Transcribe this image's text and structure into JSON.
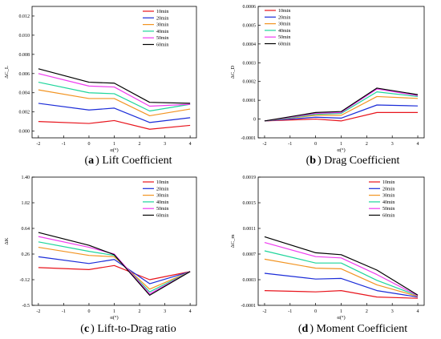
{
  "legend_labels": [
    "10min",
    "20min",
    "30min",
    "40min",
    "50min",
    "60min"
  ],
  "colors": [
    "#e8141c",
    "#1b2cd8",
    "#f29422",
    "#1fd59b",
    "#ef3cf0",
    "#000000"
  ],
  "chart_data": [
    {
      "type": "line",
      "caption_tag": "a",
      "caption_text": "Lift Coefficient",
      "xlabel": "α(°)",
      "ylabel": "ΔC_L",
      "x": [
        -2,
        0,
        1,
        2.4,
        4
      ],
      "xlim": [
        -2.25,
        4.25
      ],
      "xticks": [
        "-2",
        "-1",
        "0",
        "1",
        "2",
        "3",
        "4"
      ],
      "ylim": [
        -0.0007,
        0.013
      ],
      "yticks": [
        "0.000",
        "0.002",
        "0.004",
        "0.006",
        "0.008",
        "0.010",
        "0.012"
      ],
      "legend_position": "top-right",
      "series": [
        {
          "name": "10min",
          "values": [
            0.001,
            0.0008,
            0.0011,
            0.0002,
            0.0006
          ]
        },
        {
          "name": "20min",
          "values": [
            0.0029,
            0.0022,
            0.0024,
            0.0009,
            0.0014
          ]
        },
        {
          "name": "30min",
          "values": [
            0.0043,
            0.0034,
            0.0034,
            0.0016,
            0.0023
          ]
        },
        {
          "name": "40min",
          "values": [
            0.0051,
            0.004,
            0.0039,
            0.0021,
            0.0028
          ]
        },
        {
          "name": "50min",
          "values": [
            0.006,
            0.0047,
            0.0046,
            0.0026,
            0.0028
          ]
        },
        {
          "name": "60min",
          "values": [
            0.0065,
            0.0051,
            0.005,
            0.003,
            0.0029
          ]
        }
      ]
    },
    {
      "type": "line",
      "caption_tag": "b",
      "caption_text": "Drag Coefficient",
      "xlabel": "α(°)",
      "ylabel": "ΔC_D",
      "x": [
        -2,
        0,
        1,
        2.4,
        4
      ],
      "xlim": [
        -2.25,
        4.25
      ],
      "xticks": [
        "-2",
        "-1",
        "0",
        "1",
        "2",
        "3",
        "4"
      ],
      "ylim": [
        -0.0001,
        0.0006
      ],
      "yticks": [
        "-0.0001",
        "0",
        "0.0001",
        "0.0002",
        "0.0003",
        "0.0004",
        "0.0005",
        "0.0006"
      ],
      "legend_position": "top-left",
      "series": [
        {
          "name": "10min",
          "values": [
            -1e-05,
            0.0,
            -1e-05,
            3.5e-05,
            3.5e-05
          ]
        },
        {
          "name": "20min",
          "values": [
            -1e-05,
            1e-05,
            5e-06,
            7.5e-05,
            7e-05
          ]
        },
        {
          "name": "30min",
          "values": [
            -1e-05,
            2e-05,
            2e-05,
            0.00012,
            0.00011
          ]
        },
        {
          "name": "40min",
          "values": [
            -1e-05,
            2.5e-05,
            3e-05,
            0.000145,
            0.00012
          ]
        },
        {
          "name": "50min",
          "values": [
            -1e-05,
            3e-05,
            3.5e-05,
            0.00016,
            0.000125
          ]
        },
        {
          "name": "60min",
          "values": [
            -1e-05,
            3.5e-05,
            4e-05,
            0.000165,
            0.00013
          ]
        }
      ]
    },
    {
      "type": "line",
      "caption_tag": "c",
      "caption_text": "Lift-to-Drag ratio",
      "xlabel": "α(°)",
      "ylabel": "ΔK",
      "x": [
        -2,
        0,
        1,
        2.4,
        4
      ],
      "xlim": [
        -2.25,
        4.25
      ],
      "xticks": [
        "-2",
        "-1",
        "0",
        "1",
        "2",
        "3",
        "4"
      ],
      "ylim": [
        -0.5,
        1.4
      ],
      "yticks": [
        "-0.5",
        "-0.12",
        "0.26",
        "0.64",
        "1.02",
        "1.40"
      ],
      "legend_position": "top-right",
      "series": [
        {
          "name": "10min",
          "values": [
            0.06,
            0.03,
            0.09,
            -0.12,
            0.0
          ]
        },
        {
          "name": "20min",
          "values": [
            0.22,
            0.12,
            0.18,
            -0.18,
            0.0
          ]
        },
        {
          "name": "30min",
          "values": [
            0.36,
            0.24,
            0.22,
            -0.26,
            0.0
          ]
        },
        {
          "name": "40min",
          "values": [
            0.44,
            0.3,
            0.24,
            -0.3,
            0.0
          ]
        },
        {
          "name": "50min",
          "values": [
            0.52,
            0.36,
            0.26,
            -0.33,
            0.0
          ]
        },
        {
          "name": "60min",
          "values": [
            0.58,
            0.39,
            0.25,
            -0.35,
            0.0
          ]
        }
      ]
    },
    {
      "type": "line",
      "caption_tag": "d",
      "caption_text": "Moment Coefficient",
      "xlabel": "α(°)",
      "ylabel": "ΔC_m",
      "x": [
        -2,
        0,
        1,
        2.4,
        4
      ],
      "xlim": [
        -2.25,
        4.25
      ],
      "xticks": [
        "-2",
        "-1",
        "0",
        "1",
        "2",
        "3",
        "4"
      ],
      "ylim": [
        -0.0001,
        0.0019
      ],
      "yticks": [
        "-0.0001",
        "0.0003",
        "0.0007",
        "0.0011",
        "0.0015",
        "0.0019"
      ],
      "legend_position": "top-right",
      "series": [
        {
          "name": "10min",
          "values": [
            0.00013,
            0.00011,
            0.00013,
            3e-05,
            1e-05
          ]
        },
        {
          "name": "20min",
          "values": [
            0.0004,
            0.00031,
            0.00032,
            0.00013,
            3e-05
          ]
        },
        {
          "name": "30min",
          "values": [
            0.00062,
            0.00048,
            0.00047,
            0.00022,
            4e-05
          ]
        },
        {
          "name": "40min",
          "values": [
            0.00075,
            0.00056,
            0.00056,
            0.00029,
            5e-05
          ]
        },
        {
          "name": "50min",
          "values": [
            0.00088,
            0.00066,
            0.00064,
            0.00038,
            5e-05
          ]
        },
        {
          "name": "60min",
          "values": [
            0.00097,
            0.00072,
            0.00069,
            0.00045,
            6e-05
          ]
        }
      ]
    }
  ]
}
